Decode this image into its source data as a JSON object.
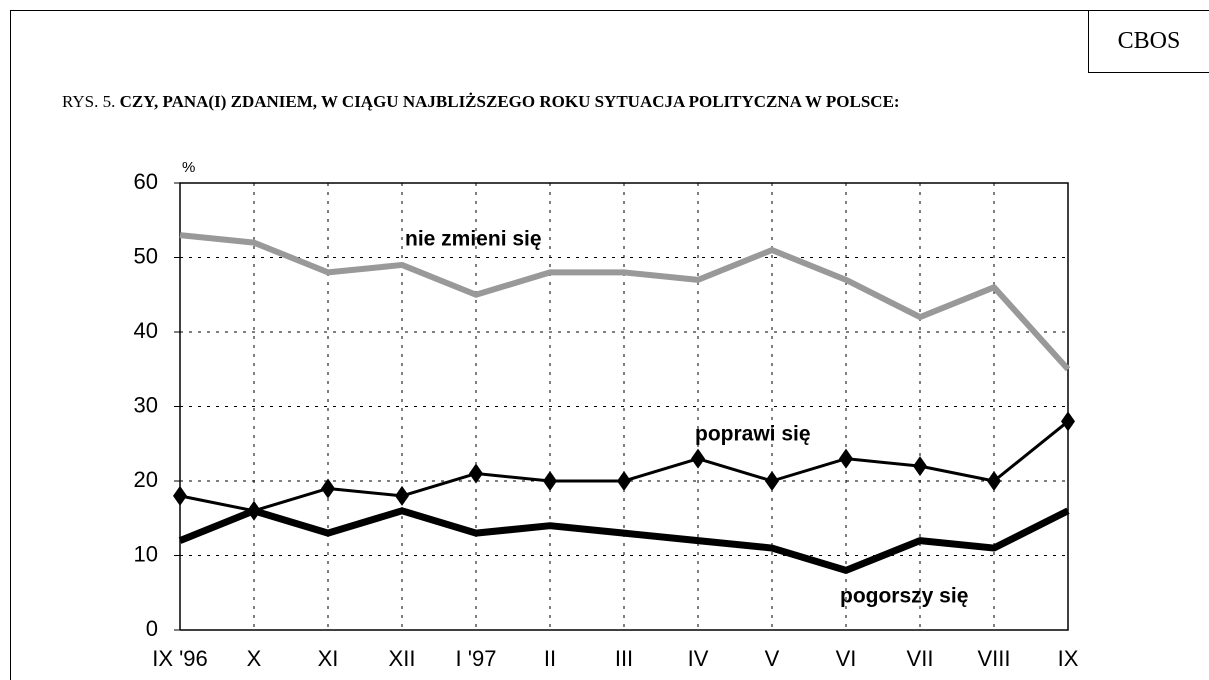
{
  "chart_data": {
    "type": "line",
    "source": "CBOS",
    "title_prefix": "RYS. 5.",
    "title": "CZY, PANA(I) ZDANIEM, W CIĄGU NAJBLIŻSZEGO ROKU SYTUACJA POLITYCZNA W POLSCE:",
    "y_unit": "%",
    "categories": [
      "IX '96",
      "X",
      "XI",
      "XII",
      "I '97",
      "II",
      "III",
      "IV",
      "V",
      "VI",
      "VII",
      "VIII",
      "IX"
    ],
    "series": [
      {
        "name": "nie zmieni się",
        "color": "#999999",
        "values": [
          53,
          52,
          48,
          49,
          45,
          48,
          48,
          47,
          51,
          47,
          42,
          46,
          35
        ]
      },
      {
        "name": "poprawi się",
        "color": "#000000",
        "values": [
          18,
          16,
          19,
          18,
          21,
          20,
          20,
          23,
          20,
          23,
          22,
          20,
          28
        ]
      },
      {
        "name": "pogorszy się",
        "color": "#000000",
        "values": [
          12,
          16,
          13,
          16,
          13,
          14,
          13,
          12,
          11,
          8,
          12,
          11,
          16
        ]
      }
    ],
    "ylim": [
      0,
      60
    ],
    "yticks": [
      0,
      10,
      20,
      30,
      40,
      50,
      60
    ],
    "grid": true
  }
}
